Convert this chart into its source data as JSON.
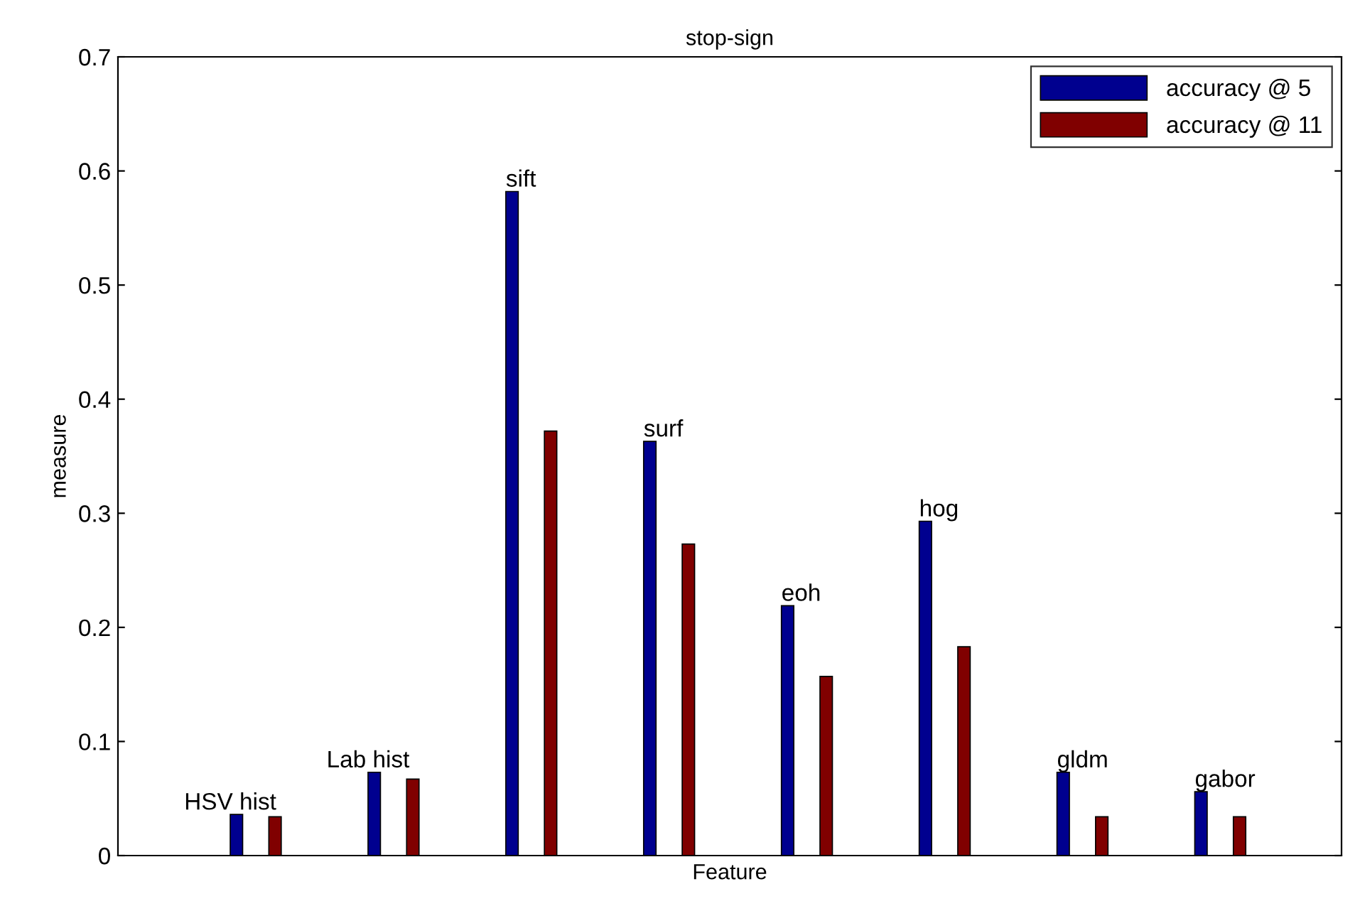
{
  "chart_data": {
    "type": "bar",
    "title": "stop-sign",
    "xlabel": "Feature",
    "ylabel": "measure",
    "categories": [
      "HSV hist",
      "Lab hist",
      "sift",
      "surf",
      "eoh",
      "hog",
      "gldm",
      "gabor"
    ],
    "series": [
      {
        "name": "accuracy @ 5",
        "color": "#00008f",
        "values": [
          0.036,
          0.073,
          0.582,
          0.363,
          0.219,
          0.293,
          0.073,
          0.056
        ]
      },
      {
        "name": "accuracy @ 11",
        "color": "#800000",
        "values": [
          0.034,
          0.067,
          0.372,
          0.273,
          0.157,
          0.183,
          0.034,
          0.034
        ]
      }
    ],
    "ylim": [
      0,
      0.7
    ],
    "yticks": [
      0,
      0.1,
      0.2,
      0.3,
      0.4,
      0.5,
      0.6,
      0.7
    ],
    "tick_labels": "y",
    "legend": "top right",
    "grid": false
  }
}
